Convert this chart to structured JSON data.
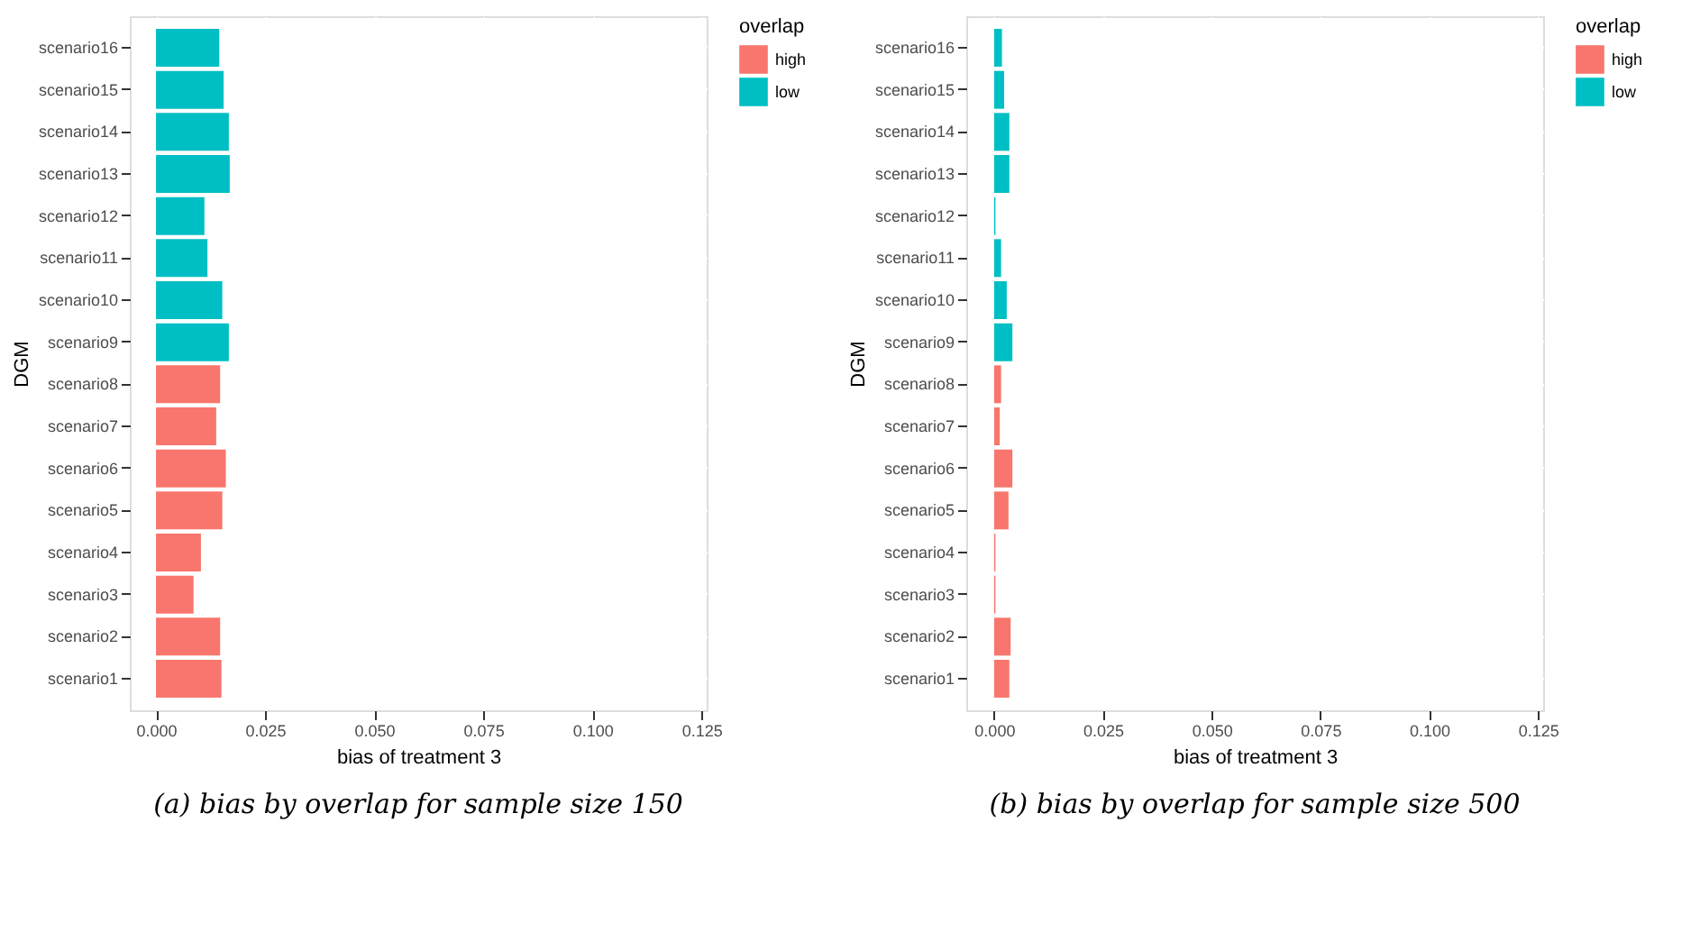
{
  "chart_data": [
    {
      "type": "bar",
      "orientation": "horizontal",
      "xlabel": "bias of treatment 3",
      "ylabel": "DGM",
      "legend_title": "overlap",
      "legend": "right",
      "grid": true,
      "categories": [
        "scenario16",
        "scenario15",
        "scenario14",
        "scenario13",
        "scenario12",
        "scenario11",
        "scenario10",
        "scenario9",
        "scenario8",
        "scenario7",
        "scenario6",
        "scenario5",
        "scenario4",
        "scenario3",
        "scenario2",
        "scenario1"
      ],
      "series": [
        {
          "name": "high",
          "color": "#f8766d",
          "values": [
            null,
            null,
            null,
            null,
            null,
            null,
            null,
            null,
            0.0147,
            0.0138,
            0.016,
            0.0152,
            0.0103,
            0.0086,
            0.0147,
            0.015
          ]
        },
        {
          "name": "low",
          "color": "#00bfc4",
          "values": [
            0.0145,
            0.0155,
            0.0167,
            0.0169,
            0.0111,
            0.0118,
            0.0152,
            0.0167,
            null,
            null,
            null,
            null,
            null,
            null,
            null,
            null
          ]
        }
      ],
      "xlim": [
        -0.006,
        0.1262
      ],
      "xticks": [
        {
          "value": 0,
          "label": "0.000"
        },
        {
          "value": 0.025,
          "label": "0.025"
        },
        {
          "value": 0.05,
          "label": "0.050"
        },
        {
          "value": 0.075,
          "label": "0.075"
        },
        {
          "value": 0.1,
          "label": "0.100"
        },
        {
          "value": 0.125,
          "label": "0.125"
        }
      ],
      "annotations": [
        "(a) bias by overlap for sample size 150"
      ]
    },
    {
      "type": "bar",
      "orientation": "horizontal",
      "xlabel": "bias of treatment 3",
      "ylabel": "DGM",
      "legend_title": "overlap",
      "legend": "right",
      "grid": true,
      "categories": [
        "scenario16",
        "scenario15",
        "scenario14",
        "scenario13",
        "scenario12",
        "scenario11",
        "scenario10",
        "scenario9",
        "scenario8",
        "scenario7",
        "scenario6",
        "scenario5",
        "scenario4",
        "scenario3",
        "scenario2",
        "scenario1"
      ],
      "series": [
        {
          "name": "high",
          "color": "#f8766d",
          "values": [
            null,
            null,
            null,
            null,
            null,
            null,
            null,
            null,
            0.0016,
            0.0013,
            0.0042,
            0.0033,
            0.0003,
            0.0003,
            0.0038,
            0.0035
          ]
        },
        {
          "name": "low",
          "color": "#00bfc4",
          "values": [
            0.0018,
            0.0023,
            0.0035,
            0.0035,
            0.0003,
            0.0016,
            0.0029,
            0.0042,
            null,
            null,
            null,
            null,
            null,
            null,
            null,
            null
          ]
        }
      ],
      "xlim": [
        -0.0064,
        0.1262
      ],
      "xticks": [
        {
          "value": 0,
          "label": "0.000"
        },
        {
          "value": 0.025,
          "label": "0.025"
        },
        {
          "value": 0.05,
          "label": "0.050"
        },
        {
          "value": 0.075,
          "label": "0.075"
        },
        {
          "value": 0.1,
          "label": "0.100"
        },
        {
          "value": 0.125,
          "label": "0.125"
        }
      ],
      "annotations": [
        "(b) bias by overlap for sample size 500"
      ]
    }
  ]
}
